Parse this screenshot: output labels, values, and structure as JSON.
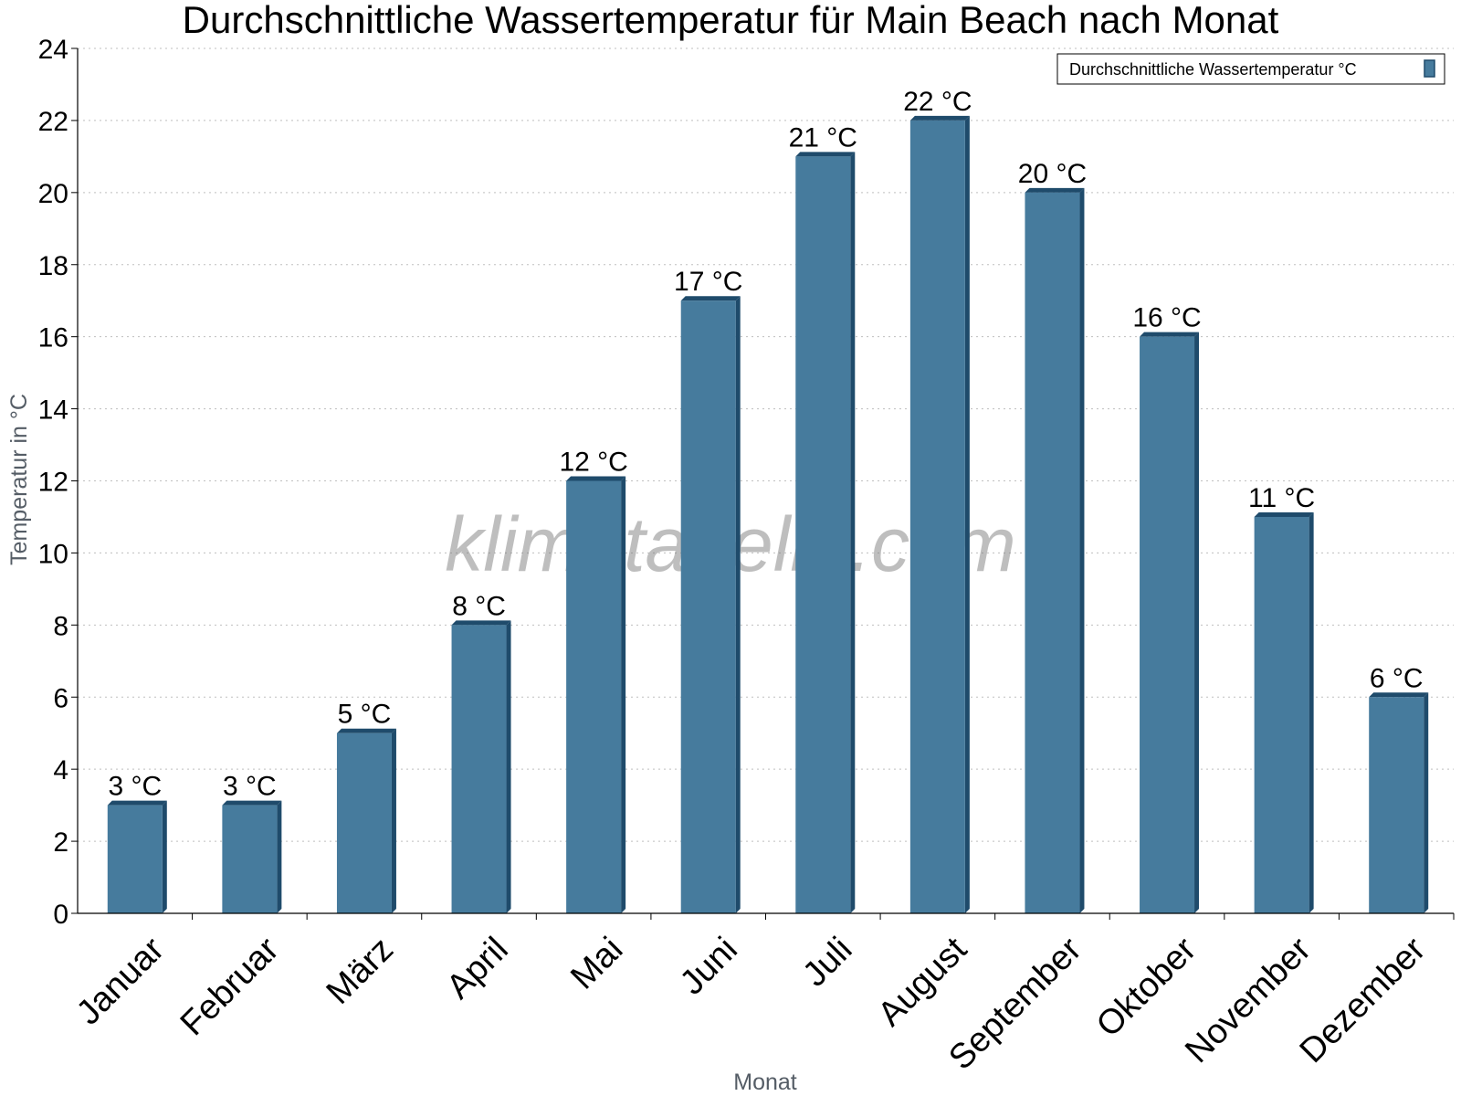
{
  "chart_data": {
    "type": "bar",
    "title": "Durchschnittliche Wassertemperatur für Main Beach nach Monat",
    "xlabel": "Monat",
    "ylabel": "Temperatur in °C",
    "categories": [
      "Januar",
      "Februar",
      "März",
      "April",
      "Mai",
      "Juni",
      "Juli",
      "August",
      "September",
      "Oktober",
      "November",
      "Dezember"
    ],
    "series": [
      {
        "name": "Durchschnittliche Wassertemperatur °C",
        "values": [
          3,
          3,
          5,
          8,
          12,
          17,
          21,
          22,
          20,
          16,
          11,
          6
        ],
        "color": "#467b9d",
        "edge_color": "#1f4b6b"
      }
    ],
    "value_labels": [
      "3 °C",
      "3 °C",
      "5 °C",
      "8 °C",
      "12 °C",
      "17 °C",
      "21 °C",
      "22 °C",
      "20 °C",
      "16 °C",
      "11 °C",
      "6 °C"
    ],
    "ylim": [
      0,
      24
    ],
    "yticks": [
      0,
      2,
      4,
      6,
      8,
      10,
      12,
      14,
      16,
      18,
      20,
      22,
      24
    ],
    "grid": true,
    "legend_position": "top-right",
    "watermark": "klimatabelle.com"
  }
}
